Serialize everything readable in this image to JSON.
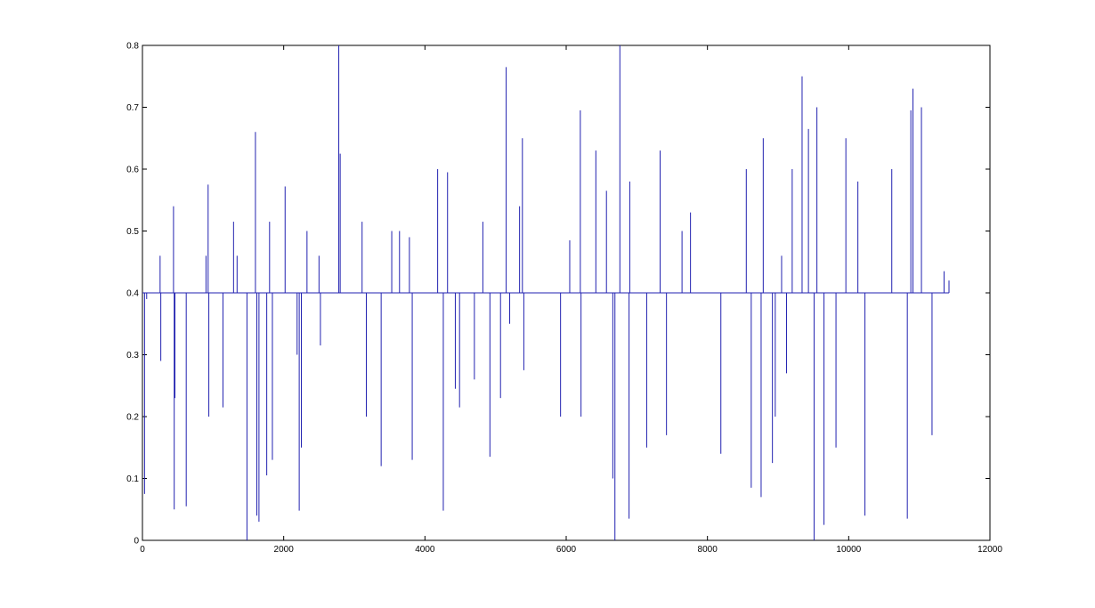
{
  "chart_data": {
    "type": "stem",
    "color": "#2222b0",
    "baseline": 0.4,
    "xlim": [
      0,
      12000
    ],
    "xticks": [
      0,
      2000,
      4000,
      6000,
      8000,
      10000,
      12000
    ],
    "ylim": [
      0,
      0.8
    ],
    "yticks": [
      0,
      0.1,
      0.2,
      0.3,
      0.4,
      0.5,
      0.6,
      0.7,
      0.8
    ],
    "x": [
      30,
      60,
      250,
      260,
      440,
      450,
      460,
      620,
      900,
      930,
      940,
      1140,
      1290,
      1340,
      1480,
      1600,
      1620,
      1650,
      1760,
      1800,
      1840,
      2020,
      2190,
      2220,
      2250,
      2330,
      2500,
      2520,
      2780,
      2800,
      3110,
      3170,
      3380,
      3530,
      3640,
      3780,
      3820,
      4180,
      4260,
      4320,
      4430,
      4490,
      4700,
      4820,
      4920,
      5070,
      5150,
      5200,
      5340,
      5380,
      5400,
      5920,
      6050,
      6200,
      6210,
      6420,
      6570,
      6660,
      6690,
      6760,
      6890,
      6900,
      7140,
      7330,
      7420,
      7640,
      7760,
      8190,
      8550,
      8620,
      8760,
      8790,
      8920,
      8960,
      9050,
      9120,
      9200,
      9340,
      9430,
      9510,
      9550,
      9650,
      9820,
      9960,
      10130,
      10230,
      10610,
      10830,
      10880,
      10910,
      11030,
      11180,
      11350,
      11420
    ],
    "values": [
      0.075,
      0.39,
      0.46,
      0.29,
      0.54,
      0.05,
      0.23,
      0.055,
      0.46,
      0.575,
      0.2,
      0.215,
      0.515,
      0.46,
      0.0,
      0.66,
      0.04,
      0.03,
      0.105,
      0.515,
      0.13,
      0.572,
      0.3,
      0.048,
      0.15,
      0.5,
      0.46,
      0.315,
      0.8,
      0.625,
      0.515,
      0.2,
      0.12,
      0.5,
      0.5,
      0.49,
      0.13,
      0.6,
      0.048,
      0.595,
      0.245,
      0.215,
      0.26,
      0.515,
      0.135,
      0.23,
      0.765,
      0.35,
      0.54,
      0.65,
      0.275,
      0.2,
      0.485,
      0.695,
      0.2,
      0.63,
      0.565,
      0.1,
      0.0,
      0.8,
      0.035,
      0.58,
      0.15,
      0.63,
      0.17,
      0.5,
      0.53,
      0.14,
      0.6,
      0.085,
      0.07,
      0.65,
      0.125,
      0.2,
      0.46,
      0.27,
      0.6,
      0.75,
      0.665,
      0.0,
      0.7,
      0.025,
      0.15,
      0.65,
      0.58,
      0.04,
      0.6,
      0.035,
      0.695,
      0.73,
      0.7,
      0.17,
      0.435,
      0.42
    ]
  }
}
